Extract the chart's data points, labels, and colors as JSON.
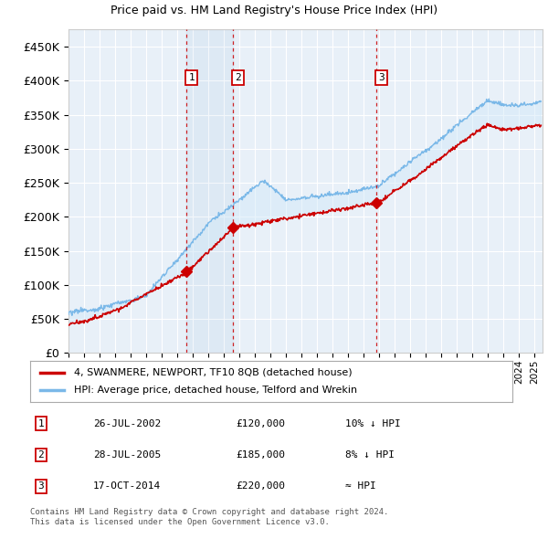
{
  "title": "4, SWANMERE, NEWPORT, TF10 8QB",
  "subtitle": "Price paid vs. HM Land Registry's House Price Index (HPI)",
  "ylim": [
    0,
    475000
  ],
  "yticks": [
    0,
    50000,
    100000,
    150000,
    200000,
    250000,
    300000,
    350000,
    400000,
    450000
  ],
  "ytick_labels": [
    "£0",
    "£50K",
    "£100K",
    "£150K",
    "£200K",
    "£250K",
    "£300K",
    "£350K",
    "£400K",
    "£450K"
  ],
  "xlim_start": 1995.0,
  "xlim_end": 2025.5,
  "sale_dates": [
    2002.57,
    2005.57,
    2014.79
  ],
  "sale_prices": [
    120000,
    185000,
    220000
  ],
  "sale_labels": [
    "1",
    "2",
    "3"
  ],
  "legend_entries": [
    "4, SWANMERE, NEWPORT, TF10 8QB (detached house)",
    "HPI: Average price, detached house, Telford and Wrekin"
  ],
  "table_rows": [
    [
      "1",
      "26-JUL-2002",
      "£120,000",
      "10% ↓ HPI"
    ],
    [
      "2",
      "28-JUL-2005",
      "£185,000",
      "8% ↓ HPI"
    ],
    [
      "3",
      "17-OCT-2014",
      "£220,000",
      "≈ HPI"
    ]
  ],
  "footer": "Contains HM Land Registry data © Crown copyright and database right 2024.\nThis data is licensed under the Open Government Licence v3.0.",
  "hpi_color": "#7ab8e8",
  "price_color": "#cc0000",
  "vline_color": "#cc0000",
  "fill_color": "#d0e8f8",
  "background_color": "#e8f0f8",
  "plot_bg": "#ffffff",
  "grid_color": "#ffffff",
  "spine_color": "#cccccc"
}
